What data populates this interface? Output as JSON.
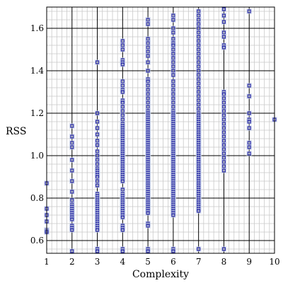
{
  "chart_data": {
    "type": "scatter",
    "title": "",
    "xlabel": "Complexity",
    "ylabel": "RSS",
    "xlim": [
      1,
      10
    ],
    "ylim": [
      0.54,
      1.7
    ],
    "xticks": [
      1,
      2,
      3,
      4,
      5,
      6,
      7,
      8,
      9,
      10
    ],
    "yticks": [
      0.6,
      0.8,
      1.0,
      1.2,
      1.4,
      1.6
    ],
    "xtick_labels": [
      "1",
      "2",
      "3",
      "4",
      "5",
      "6",
      "7",
      "8",
      "9",
      "10"
    ],
    "ytick_labels": [
      "0.6",
      "0.8",
      "1.0",
      "1.2",
      "1.4",
      "1.6"
    ],
    "grid": true,
    "legend": "none",
    "colors": {
      "marker": "#1f1fa0",
      "halo": "#c9d3ea",
      "grid_major": "#000000",
      "grid_minor": "#c8c8c8"
    },
    "points": [
      [
        1,
        0.87
      ],
      [
        1,
        0.75
      ],
      [
        1,
        0.72
      ],
      [
        1,
        0.69
      ],
      [
        1,
        0.65
      ],
      [
        1,
        0.645
      ],
      [
        1,
        0.64
      ],
      [
        2,
        1.14
      ],
      [
        2,
        1.09
      ],
      [
        2,
        1.06
      ],
      [
        2,
        1.04
      ],
      [
        2,
        0.98
      ],
      [
        2,
        0.93
      ],
      [
        2,
        0.88
      ],
      [
        2,
        0.83
      ],
      [
        2,
        0.79
      ],
      [
        2,
        0.77
      ],
      [
        2,
        0.76
      ],
      [
        2,
        0.75
      ],
      [
        2,
        0.74
      ],
      [
        2,
        0.73
      ],
      [
        2,
        0.72
      ],
      [
        2,
        0.71
      ],
      [
        2,
        0.7
      ],
      [
        2,
        0.67
      ],
      [
        2,
        0.66
      ],
      [
        2,
        0.65
      ],
      [
        2,
        0.55
      ],
      [
        3,
        1.44
      ],
      [
        3,
        1.2
      ],
      [
        3,
        1.16
      ],
      [
        3,
        1.13
      ],
      [
        3,
        1.1
      ],
      [
        3,
        1.07
      ],
      [
        3,
        1.05
      ],
      [
        3,
        1.02
      ],
      [
        3,
        1.0
      ],
      [
        3,
        0.98
      ],
      [
        3,
        0.96
      ],
      [
        3,
        0.94
      ],
      [
        3,
        0.93
      ],
      [
        3,
        0.92
      ],
      [
        3,
        0.91
      ],
      [
        3,
        0.9
      ],
      [
        3,
        0.88
      ],
      [
        3,
        0.86
      ],
      [
        3,
        0.82
      ],
      [
        3,
        0.81
      ],
      [
        3,
        0.8
      ],
      [
        3,
        0.79
      ],
      [
        3,
        0.78
      ],
      [
        3,
        0.77
      ],
      [
        3,
        0.76
      ],
      [
        3,
        0.75
      ],
      [
        3,
        0.74
      ],
      [
        3,
        0.73
      ],
      [
        3,
        0.72
      ],
      [
        3,
        0.71
      ],
      [
        3,
        0.7
      ],
      [
        3,
        0.69
      ],
      [
        3,
        0.68
      ],
      [
        3,
        0.67
      ],
      [
        3,
        0.66
      ],
      [
        3,
        0.65
      ],
      [
        3,
        0.56
      ],
      [
        3,
        0.55
      ],
      [
        4,
        1.54
      ],
      [
        4,
        1.52
      ],
      [
        4,
        1.5
      ],
      [
        4,
        1.45
      ],
      [
        4,
        1.44
      ],
      [
        4,
        1.43
      ],
      [
        4,
        1.35
      ],
      [
        4,
        1.33
      ],
      [
        4,
        1.31
      ],
      [
        4,
        1.3
      ],
      [
        4,
        1.26
      ],
      [
        4,
        1.25
      ],
      [
        4,
        1.23
      ],
      [
        4,
        1.21
      ],
      [
        4,
        1.19
      ],
      [
        4,
        1.17
      ],
      [
        4,
        1.15
      ],
      [
        4,
        1.14
      ],
      [
        4,
        1.13
      ],
      [
        4,
        1.12
      ],
      [
        4,
        1.11
      ],
      [
        4,
        1.1
      ],
      [
        4,
        1.09
      ],
      [
        4,
        1.08
      ],
      [
        4,
        1.07
      ],
      [
        4,
        1.06
      ],
      [
        4,
        1.05
      ],
      [
        4,
        1.04
      ],
      [
        4,
        1.03
      ],
      [
        4,
        1.02
      ],
      [
        4,
        1.01
      ],
      [
        4,
        1.0
      ],
      [
        4,
        0.99
      ],
      [
        4,
        0.98
      ],
      [
        4,
        0.97
      ],
      [
        4,
        0.96
      ],
      [
        4,
        0.95
      ],
      [
        4,
        0.94
      ],
      [
        4,
        0.93
      ],
      [
        4,
        0.92
      ],
      [
        4,
        0.91
      ],
      [
        4,
        0.9
      ],
      [
        4,
        0.89
      ],
      [
        4,
        0.88
      ],
      [
        4,
        0.84
      ],
      [
        4,
        0.82
      ],
      [
        4,
        0.81
      ],
      [
        4,
        0.8
      ],
      [
        4,
        0.79
      ],
      [
        4,
        0.78
      ],
      [
        4,
        0.77
      ],
      [
        4,
        0.76
      ],
      [
        4,
        0.75
      ],
      [
        4,
        0.74
      ],
      [
        4,
        0.73
      ],
      [
        4,
        0.72
      ],
      [
        4,
        0.71
      ],
      [
        4,
        0.67
      ],
      [
        4,
        0.66
      ],
      [
        4,
        0.65
      ],
      [
        4,
        0.56
      ],
      [
        4,
        0.55
      ],
      [
        5,
        1.64
      ],
      [
        5,
        1.62
      ],
      [
        5,
        1.55
      ],
      [
        5,
        1.53
      ],
      [
        5,
        1.51
      ],
      [
        5,
        1.49
      ],
      [
        5,
        1.47
      ],
      [
        5,
        1.44
      ],
      [
        5,
        1.4
      ],
      [
        5,
        1.36
      ],
      [
        5,
        1.35
      ],
      [
        5,
        1.33
      ],
      [
        5,
        1.31
      ],
      [
        5,
        1.29
      ],
      [
        5,
        1.27
      ],
      [
        5,
        1.25
      ],
      [
        5,
        1.23
      ],
      [
        5,
        1.21
      ],
      [
        5,
        1.2
      ],
      [
        5,
        1.19
      ],
      [
        5,
        1.18
      ],
      [
        5,
        1.17
      ],
      [
        5,
        1.16
      ],
      [
        5,
        1.15
      ],
      [
        5,
        1.14
      ],
      [
        5,
        1.13
      ],
      [
        5,
        1.12
      ],
      [
        5,
        1.11
      ],
      [
        5,
        1.1
      ],
      [
        5,
        1.09
      ],
      [
        5,
        1.08
      ],
      [
        5,
        1.07
      ],
      [
        5,
        1.06
      ],
      [
        5,
        1.05
      ],
      [
        5,
        1.04
      ],
      [
        5,
        1.03
      ],
      [
        5,
        1.02
      ],
      [
        5,
        1.01
      ],
      [
        5,
        1.0
      ],
      [
        5,
        0.99
      ],
      [
        5,
        0.98
      ],
      [
        5,
        0.97
      ],
      [
        5,
        0.96
      ],
      [
        5,
        0.95
      ],
      [
        5,
        0.94
      ],
      [
        5,
        0.93
      ],
      [
        5,
        0.92
      ],
      [
        5,
        0.91
      ],
      [
        5,
        0.9
      ],
      [
        5,
        0.89
      ],
      [
        5,
        0.88
      ],
      [
        5,
        0.87
      ],
      [
        5,
        0.86
      ],
      [
        5,
        0.85
      ],
      [
        5,
        0.84
      ],
      [
        5,
        0.83
      ],
      [
        5,
        0.82
      ],
      [
        5,
        0.81
      ],
      [
        5,
        0.8
      ],
      [
        5,
        0.79
      ],
      [
        5,
        0.78
      ],
      [
        5,
        0.77
      ],
      [
        5,
        0.76
      ],
      [
        5,
        0.75
      ],
      [
        5,
        0.74
      ],
      [
        5,
        0.73
      ],
      [
        5,
        0.68
      ],
      [
        5,
        0.67
      ],
      [
        5,
        0.56
      ],
      [
        5,
        0.55
      ],
      [
        6,
        1.66
      ],
      [
        6,
        1.64
      ],
      [
        6,
        1.6
      ],
      [
        6,
        1.58
      ],
      [
        6,
        1.55
      ],
      [
        6,
        1.53
      ],
      [
        6,
        1.52
      ],
      [
        6,
        1.5
      ],
      [
        6,
        1.48
      ],
      [
        6,
        1.46
      ],
      [
        6,
        1.44
      ],
      [
        6,
        1.42
      ],
      [
        6,
        1.4
      ],
      [
        6,
        1.38
      ],
      [
        6,
        1.35
      ],
      [
        6,
        1.33
      ],
      [
        6,
        1.31
      ],
      [
        6,
        1.29
      ],
      [
        6,
        1.27
      ],
      [
        6,
        1.25
      ],
      [
        6,
        1.23
      ],
      [
        6,
        1.21
      ],
      [
        6,
        1.2
      ],
      [
        6,
        1.19
      ],
      [
        6,
        1.18
      ],
      [
        6,
        1.17
      ],
      [
        6,
        1.16
      ],
      [
        6,
        1.15
      ],
      [
        6,
        1.14
      ],
      [
        6,
        1.13
      ],
      [
        6,
        1.12
      ],
      [
        6,
        1.11
      ],
      [
        6,
        1.1
      ],
      [
        6,
        1.09
      ],
      [
        6,
        1.08
      ],
      [
        6,
        1.07
      ],
      [
        6,
        1.06
      ],
      [
        6,
        1.05
      ],
      [
        6,
        1.04
      ],
      [
        6,
        1.03
      ],
      [
        6,
        1.02
      ],
      [
        6,
        1.01
      ],
      [
        6,
        1.0
      ],
      [
        6,
        0.99
      ],
      [
        6,
        0.98
      ],
      [
        6,
        0.97
      ],
      [
        6,
        0.96
      ],
      [
        6,
        0.95
      ],
      [
        6,
        0.94
      ],
      [
        6,
        0.93
      ],
      [
        6,
        0.92
      ],
      [
        6,
        0.91
      ],
      [
        6,
        0.9
      ],
      [
        6,
        0.89
      ],
      [
        6,
        0.88
      ],
      [
        6,
        0.87
      ],
      [
        6,
        0.86
      ],
      [
        6,
        0.85
      ],
      [
        6,
        0.84
      ],
      [
        6,
        0.83
      ],
      [
        6,
        0.82
      ],
      [
        6,
        0.81
      ],
      [
        6,
        0.8
      ],
      [
        6,
        0.79
      ],
      [
        6,
        0.78
      ],
      [
        6,
        0.77
      ],
      [
        6,
        0.76
      ],
      [
        6,
        0.75
      ],
      [
        6,
        0.74
      ],
      [
        6,
        0.73
      ],
      [
        6,
        0.72
      ],
      [
        6,
        0.56
      ],
      [
        6,
        0.55
      ],
      [
        7,
        1.68
      ],
      [
        7,
        1.66
      ],
      [
        7,
        1.64
      ],
      [
        7,
        1.62
      ],
      [
        7,
        1.6
      ],
      [
        7,
        1.58
      ],
      [
        7,
        1.56
      ],
      [
        7,
        1.54
      ],
      [
        7,
        1.52
      ],
      [
        7,
        1.5
      ],
      [
        7,
        1.48
      ],
      [
        7,
        1.46
      ],
      [
        7,
        1.44
      ],
      [
        7,
        1.42
      ],
      [
        7,
        1.4
      ],
      [
        7,
        1.38
      ],
      [
        7,
        1.36
      ],
      [
        7,
        1.34
      ],
      [
        7,
        1.32
      ],
      [
        7,
        1.3
      ],
      [
        7,
        1.28
      ],
      [
        7,
        1.26
      ],
      [
        7,
        1.24
      ],
      [
        7,
        1.22
      ],
      [
        7,
        1.2
      ],
      [
        7,
        1.19
      ],
      [
        7,
        1.18
      ],
      [
        7,
        1.17
      ],
      [
        7,
        1.16
      ],
      [
        7,
        1.15
      ],
      [
        7,
        1.14
      ],
      [
        7,
        1.13
      ],
      [
        7,
        1.12
      ],
      [
        7,
        1.11
      ],
      [
        7,
        1.1
      ],
      [
        7,
        1.09
      ],
      [
        7,
        1.08
      ],
      [
        7,
        1.07
      ],
      [
        7,
        1.06
      ],
      [
        7,
        1.05
      ],
      [
        7,
        1.04
      ],
      [
        7,
        1.03
      ],
      [
        7,
        1.02
      ],
      [
        7,
        1.01
      ],
      [
        7,
        1.0
      ],
      [
        7,
        0.99
      ],
      [
        7,
        0.98
      ],
      [
        7,
        0.97
      ],
      [
        7,
        0.96
      ],
      [
        7,
        0.95
      ],
      [
        7,
        0.94
      ],
      [
        7,
        0.93
      ],
      [
        7,
        0.92
      ],
      [
        7,
        0.91
      ],
      [
        7,
        0.9
      ],
      [
        7,
        0.89
      ],
      [
        7,
        0.88
      ],
      [
        7,
        0.87
      ],
      [
        7,
        0.86
      ],
      [
        7,
        0.85
      ],
      [
        7,
        0.84
      ],
      [
        7,
        0.83
      ],
      [
        7,
        0.82
      ],
      [
        7,
        0.81
      ],
      [
        7,
        0.8
      ],
      [
        7,
        0.79
      ],
      [
        7,
        0.78
      ],
      [
        7,
        0.77
      ],
      [
        7,
        0.76
      ],
      [
        7,
        0.75
      ],
      [
        7,
        0.74
      ],
      [
        7,
        0.56
      ],
      [
        8,
        1.69
      ],
      [
        8,
        1.66
      ],
      [
        8,
        1.63
      ],
      [
        8,
        1.58
      ],
      [
        8,
        1.56
      ],
      [
        8,
        1.52
      ],
      [
        8,
        1.51
      ],
      [
        8,
        1.3
      ],
      [
        8,
        1.29
      ],
      [
        8,
        1.27
      ],
      [
        8,
        1.25
      ],
      [
        8,
        1.23
      ],
      [
        8,
        1.21
      ],
      [
        8,
        1.19
      ],
      [
        8,
        1.17
      ],
      [
        8,
        1.15
      ],
      [
        8,
        1.13
      ],
      [
        8,
        1.11
      ],
      [
        8,
        1.09
      ],
      [
        8,
        1.07
      ],
      [
        8,
        1.05
      ],
      [
        8,
        1.03
      ],
      [
        8,
        1.01
      ],
      [
        8,
        0.99
      ],
      [
        8,
        0.97
      ],
      [
        8,
        0.95
      ],
      [
        8,
        0.93
      ],
      [
        8,
        0.56
      ],
      [
        9,
        1.68
      ],
      [
        9,
        1.33
      ],
      [
        9,
        1.28
      ],
      [
        9,
        1.2
      ],
      [
        9,
        1.17
      ],
      [
        9,
        1.16
      ],
      [
        9,
        1.13
      ],
      [
        9,
        1.06
      ],
      [
        9,
        1.04
      ],
      [
        9,
        1.01
      ],
      [
        10,
        1.17
      ]
    ]
  }
}
